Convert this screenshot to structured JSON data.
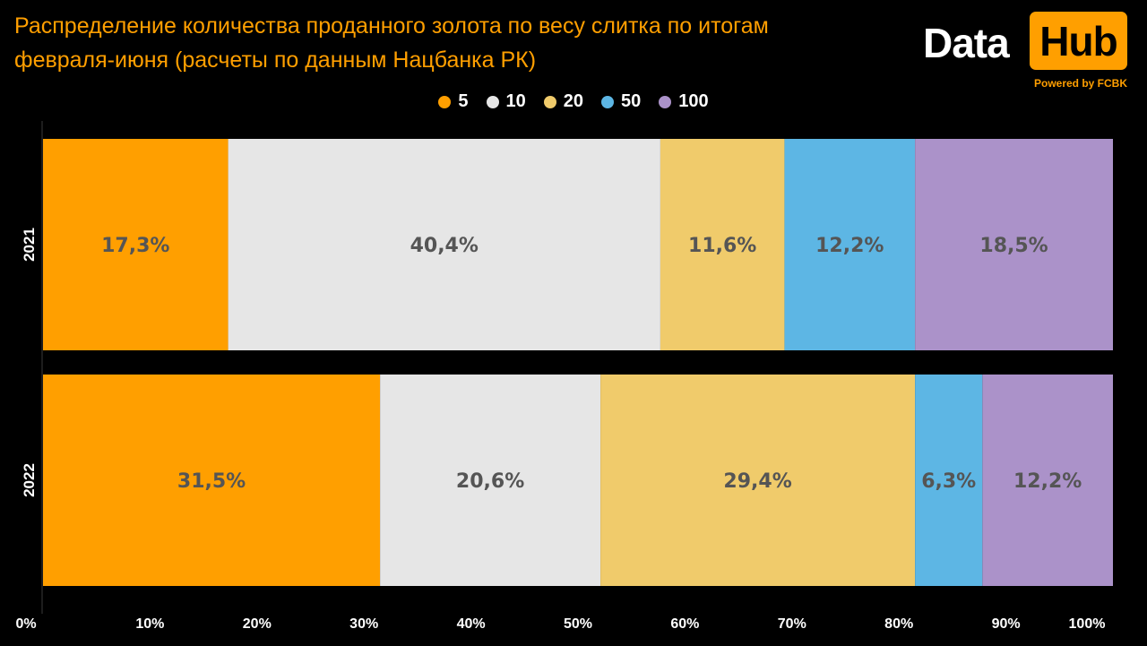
{
  "header": {
    "title": "Распределение количества проданного золота по весу слитка по итогам февраля-июня (расчеты по данным Нацбанка РК)"
  },
  "logo": {
    "data_text": "Data",
    "hub_text": "Hub",
    "powered_text": "Powered by FCBK"
  },
  "colors": {
    "background": "#000000",
    "title": "#ff9f00",
    "accent": "#ff9f00",
    "label": "#555555",
    "series": [
      "#ff9f00",
      "#e6e6e6",
      "#f0cb6b",
      "#5db6e4",
      "#ab92c9"
    ]
  },
  "chart_data": {
    "type": "bar",
    "orientation": "horizontal",
    "stacked": true,
    "normalized": true,
    "title": "Распределение количества проданного золота по весу слитка по итогам февраля-июня (расчеты по данным Нацбанка РК)",
    "categories": [
      "2021",
      "2022"
    ],
    "series": [
      {
        "name": "5",
        "values": [
          17.3,
          31.5
        ],
        "labels": [
          "17,3%",
          "31,5%"
        ]
      },
      {
        "name": "10",
        "values": [
          40.4,
          20.6
        ],
        "labels": [
          "40,4%",
          "20,6%"
        ]
      },
      {
        "name": "20",
        "values": [
          11.6,
          29.4
        ],
        "labels": [
          "11,6%",
          "29,4%"
        ]
      },
      {
        "name": "50",
        "values": [
          12.2,
          6.3
        ],
        "labels": [
          "12,2%",
          "6,3%"
        ]
      },
      {
        "name": "100",
        "values": [
          18.5,
          12.2
        ],
        "labels": [
          "18,5%",
          "12,2%"
        ]
      }
    ],
    "xlim": [
      0,
      100
    ],
    "xticks": [
      "0%",
      "10%",
      "20%",
      "30%",
      "40%",
      "50%",
      "60%",
      "70%",
      "80%",
      "90%",
      "100%"
    ],
    "legend": "top-center",
    "grid": false,
    "xlabel": "",
    "ylabel": ""
  }
}
